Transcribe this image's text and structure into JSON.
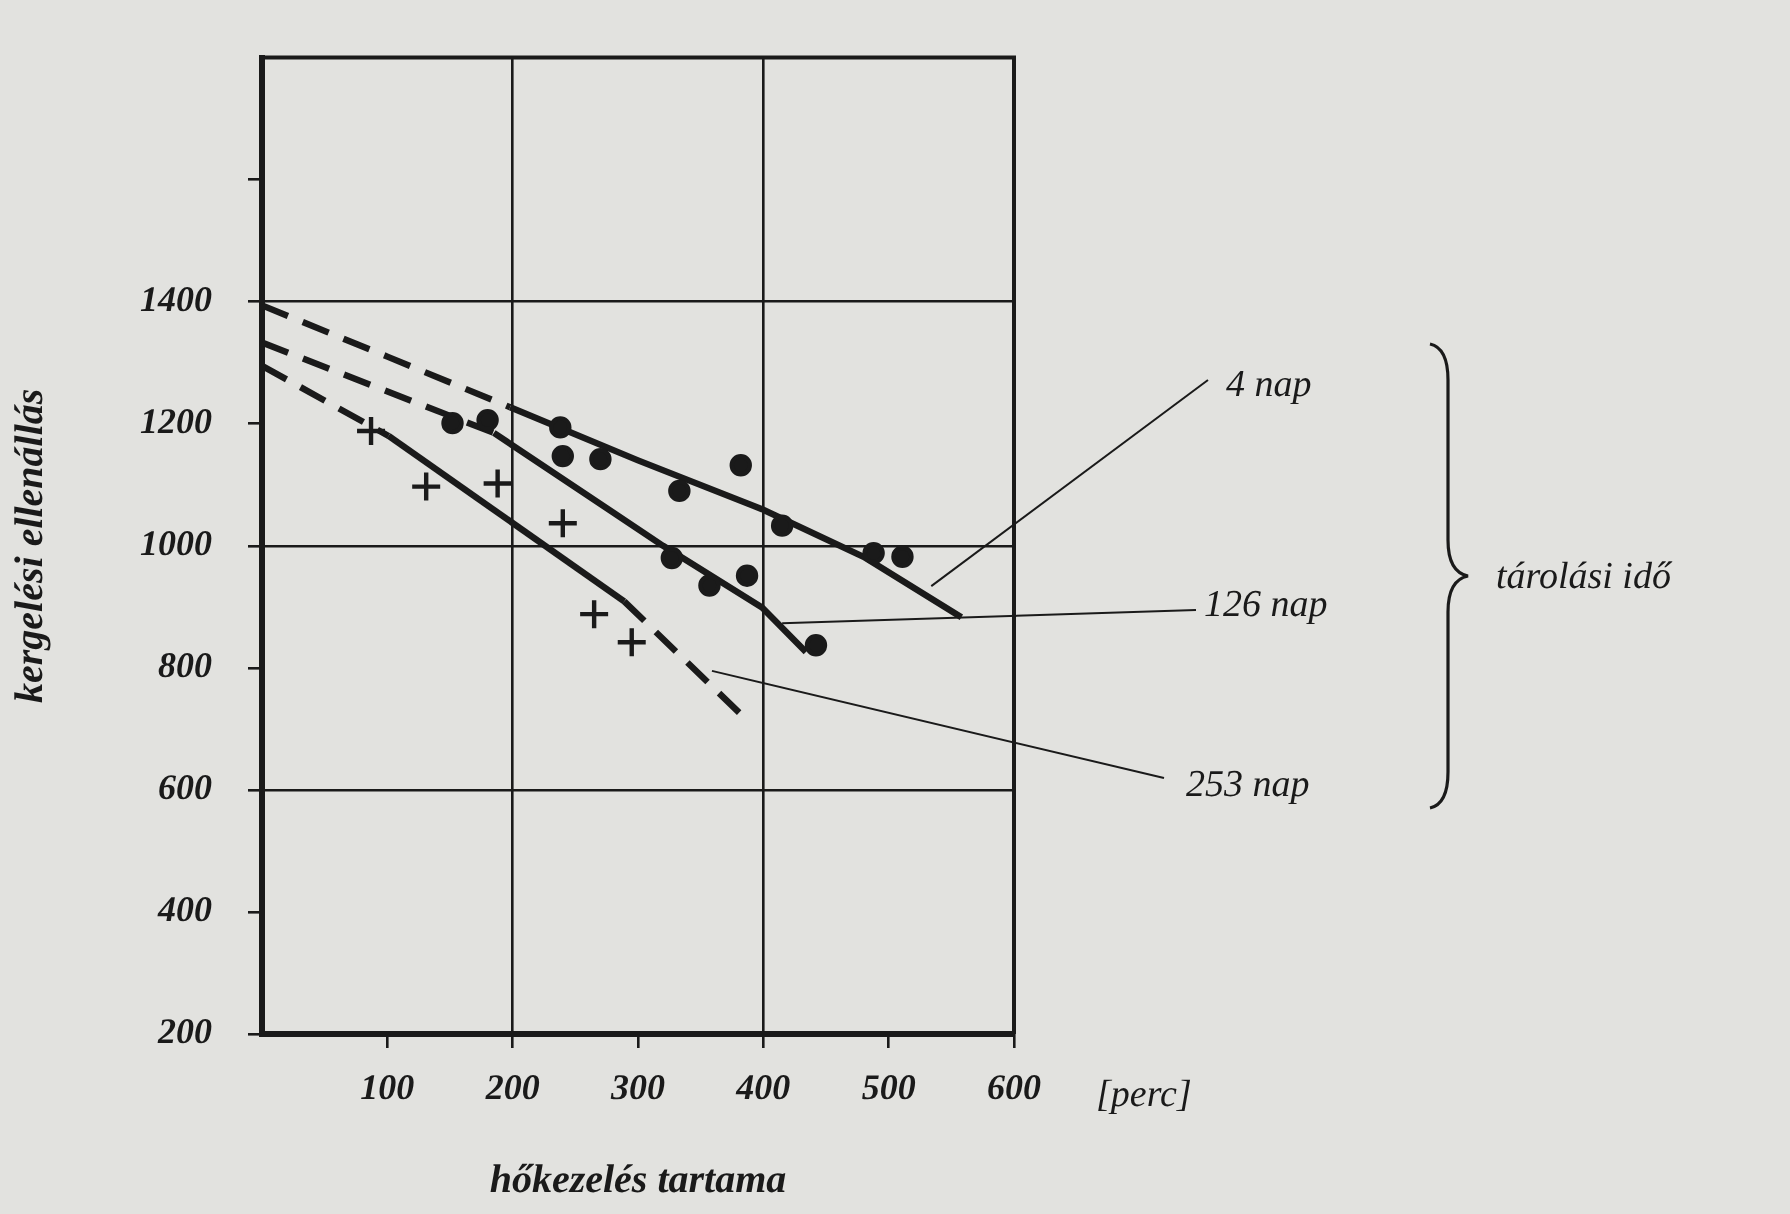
{
  "chart_data": {
    "type": "scatter",
    "xlabel": "hőkezelés tartama",
    "ylabel": "kergelési ellenállás",
    "xlim": [
      0,
      600
    ],
    "xticks": [
      100,
      200,
      300,
      400,
      500,
      600
    ],
    "ylim": [
      200,
      1800
    ],
    "yticks": [
      200,
      400,
      600,
      800,
      1000,
      1200,
      1400,
      {
        "value": 1600,
        "label": null
      }
    ],
    "grid": true,
    "series": [
      {
        "type": "scatter",
        "marker": "circle",
        "color": "#1a1a1a",
        "x": [
          238,
          333,
          382,
          415,
          488,
          511
        ],
        "values": [
          1194,
          1090,
          1132,
          1033,
          988,
          982
        ]
      },
      {
        "type": "scatter",
        "marker": "circle",
        "color": "#1a1a1a",
        "x": [
          152,
          180,
          240,
          270,
          327,
          357,
          387,
          442
        ],
        "values": [
          1201,
          1206,
          1147,
          1142,
          980,
          935,
          951,
          837
        ]
      },
      {
        "type": "scatter",
        "marker": "cross",
        "color": "#1a1a1a",
        "x": [
          87,
          131,
          188,
          240,
          265,
          295
        ],
        "values": [
          1188,
          1097,
          1102,
          1037,
          888,
          842
        ]
      },
      {
        "type": "line",
        "line_style": "dashed",
        "color": "#1a1a1a",
        "x": [
          0,
          100,
          198
        ],
        "values": [
          1394,
          1310,
          1227
        ]
      },
      {
        "type": "line",
        "line_style": "solid",
        "color": "#1a1a1a",
        "x": [
          198,
          300,
          399,
          480,
          558
        ],
        "values": [
          1227,
          1140,
          1060,
          982,
          883
        ]
      },
      {
        "type": "line",
        "line_style": "dashed",
        "color": "#1a1a1a",
        "x": [
          0,
          185
        ],
        "values": [
          1333,
          1185
        ]
      },
      {
        "type": "line",
        "line_style": "solid",
        "color": "#1a1a1a",
        "x": [
          185,
          320,
          399,
          434
        ],
        "values": [
          1185,
          1000,
          899,
          826
        ]
      },
      {
        "type": "line",
        "line_style": "dashed",
        "color": "#1a1a1a",
        "x": [
          0,
          101
        ],
        "values": [
          1295,
          1180
        ]
      },
      {
        "type": "line",
        "line_style": "solid",
        "color": "#1a1a1a",
        "x": [
          101,
          289
        ],
        "values": [
          1180,
          909
        ]
      },
      {
        "type": "line",
        "line_style": "dashed",
        "color": "#1a1a1a",
        "x": [
          289,
          383
        ],
        "values": [
          909,
          722
        ]
      }
    ],
    "annotations": [
      {
        "text": "4 nap",
        "x": 534,
        "y": 934
      },
      {
        "text": "126 nap",
        "x": 415,
        "y": 873
      },
      {
        "text": "253 nap",
        "x": 359,
        "y": 795
      },
      "[perc]",
      "tárolási idő"
    ]
  }
}
